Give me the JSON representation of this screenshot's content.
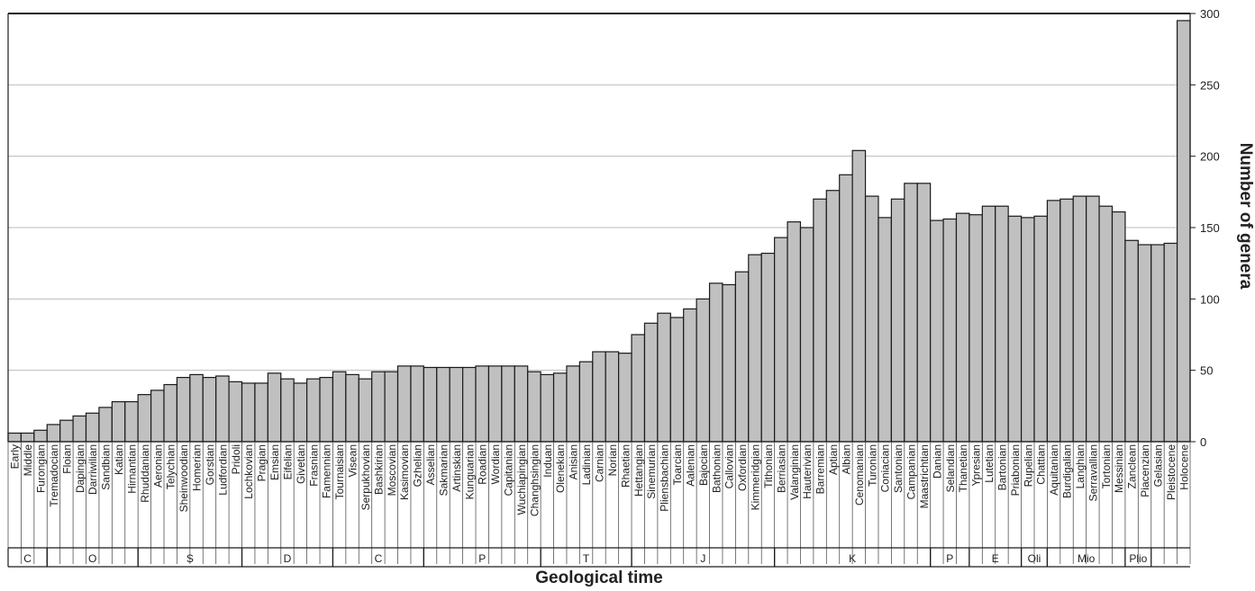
{
  "chart_data": {
    "type": "bar",
    "xlabel": "Geological time",
    "ylabel": "Number of genera",
    "ylim": [
      0,
      300
    ],
    "yticks": [
      0,
      50,
      100,
      150,
      200,
      250,
      300
    ],
    "grid": true,
    "axis_side": "right",
    "colors": {
      "bar_fill": "#c0c0c0",
      "bar_stroke": "#1a1a1a",
      "grid": "#bdbdbd"
    },
    "categories": [
      "Early",
      "Middle",
      "Furongian",
      "Tremadocian",
      "Floian",
      "Dapingian",
      "Darriwilian",
      "Sandbian",
      "Katian",
      "Hirnantian",
      "Rhuddanian",
      "Aeronian",
      "Telychian",
      "Sheinwoodian",
      "Homerian",
      "Gorstian",
      "Ludfordian",
      "Pridoli",
      "Lochkovian",
      "Pragian",
      "Emsian",
      "Eifelian",
      "Givetian",
      "Frasnian",
      "Famennian",
      "Tournaisian",
      "Visean",
      "Serpukhovian",
      "Bashkirian",
      "Moscovian",
      "Kasimovian",
      "Gzhelian",
      "Asselian",
      "Sakmarian",
      "Artinskian",
      "Kunguarian",
      "Roadian",
      "Wordian",
      "Capitanian",
      "Wuchiapingian",
      "Changhsingian",
      "Induan",
      "Olenekian",
      "Anisian",
      "Ladinian",
      "Carnian",
      "Norian",
      "Rhaetian",
      "Hettangian",
      "Sinemurian",
      "Pliensbachian",
      "Toarcian",
      "Aalenian",
      "Bajocian",
      "Bathonian",
      "Callovian",
      "Oxfordian",
      "Kimmeridgian",
      "Tithonian",
      "Berriasian",
      "Valanginian",
      "Hauterivian",
      "Barremian",
      "Aptian",
      "Albian",
      "Cenomanian",
      "Turonian",
      "Coniacian",
      "Santonian",
      "Campanian",
      "Maastrichtian",
      "Danian",
      "Selandian",
      "Thanetian",
      "Ypresian",
      "Lutetian",
      "Bartonian",
      "Priabonian",
      "Rupelian",
      "Chattian",
      "Aquitanian",
      "Burdigalian",
      "Langhian",
      "Serravallian",
      "Tortonian",
      "Messinian",
      "Zanclean",
      "Piacenzian",
      "Gelasian",
      "Pleistocene",
      "Holocene"
    ],
    "values": [
      6,
      6,
      8,
      12,
      15,
      18,
      20,
      24,
      28,
      28,
      33,
      36,
      40,
      45,
      47,
      45,
      46,
      42,
      41,
      41,
      48,
      44,
      41,
      44,
      45,
      49,
      47,
      44,
      49,
      49,
      53,
      53,
      52,
      52,
      52,
      52,
      53,
      53,
      53,
      53,
      49,
      47,
      48,
      53,
      56,
      63,
      63,
      62,
      75,
      83,
      90,
      87,
      93,
      100,
      111,
      110,
      119,
      131,
      132,
      143,
      154,
      150,
      170,
      176,
      187,
      204,
      172,
      157,
      170,
      181,
      181,
      155,
      156,
      160,
      159,
      165,
      165,
      158,
      157,
      158,
      169,
      170,
      172,
      172,
      165,
      161,
      141,
      138,
      138,
      139,
      295
    ],
    "periods": [
      {
        "label": "C",
        "start": 0,
        "end": 3
      },
      {
        "label": "O",
        "start": 3,
        "end": 10
      },
      {
        "label": "S",
        "start": 10,
        "end": 18
      },
      {
        "label": "D",
        "start": 18,
        "end": 25
      },
      {
        "label": "C",
        "start": 25,
        "end": 32
      },
      {
        "label": "P",
        "start": 32,
        "end": 41
      },
      {
        "label": "T",
        "start": 41,
        "end": 48
      },
      {
        "label": "J",
        "start": 48,
        "end": 59
      },
      {
        "label": "K",
        "start": 59,
        "end": 71
      },
      {
        "label": "P",
        "start": 71,
        "end": 74
      },
      {
        "label": "E",
        "start": 74,
        "end": 78
      },
      {
        "label": "Oli",
        "start": 78,
        "end": 80
      },
      {
        "label": "Mio",
        "start": 80,
        "end": 86
      },
      {
        "label": "Plio",
        "start": 86,
        "end": 88
      }
    ]
  }
}
